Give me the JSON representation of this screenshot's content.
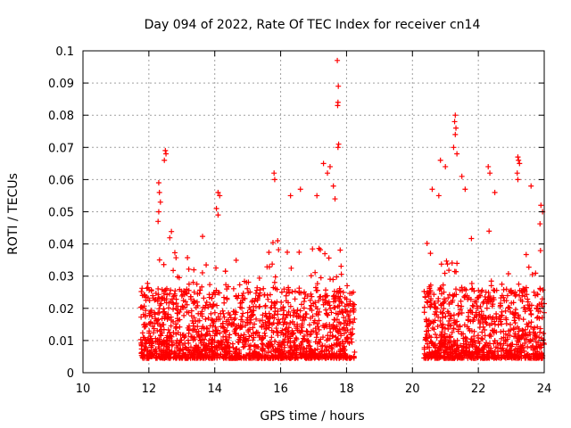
{
  "chart_data": {
    "type": "scatter",
    "title": "Day 094 of 2022, Rate Of TEC Index for receiver cn14",
    "xlabel": "GPS time / hours",
    "ylabel": "ROTI / TECUs",
    "xlim": [
      10,
      24
    ],
    "ylim": [
      0,
      0.1
    ],
    "x_ticks": [
      10,
      12,
      14,
      16,
      18,
      20,
      22,
      24
    ],
    "x_tick_labels": [
      "10",
      "12",
      "14",
      "16",
      "18",
      "20",
      "22",
      "24"
    ],
    "y_ticks": [
      0,
      0.01,
      0.02,
      0.03,
      0.04,
      0.05,
      0.06,
      0.07,
      0.08,
      0.09,
      0.1
    ],
    "y_tick_labels": [
      "0",
      "0.01",
      "0.02",
      "0.03",
      "0.04",
      "0.05",
      "0.06",
      "0.07",
      "0.08",
      "0.09",
      "0.1"
    ],
    "grid": true,
    "marker": "+",
    "color": "#ff0000",
    "data_gap": [
      18.25,
      20.35
    ],
    "series": [
      {
        "name": "cn14",
        "points": [
          [
            17.72,
            0.097
          ],
          [
            17.75,
            0.089
          ],
          [
            17.74,
            0.084
          ],
          [
            17.73,
            0.083
          ],
          [
            17.76,
            0.071
          ],
          [
            17.74,
            0.07
          ],
          [
            12.5,
            0.069
          ],
          [
            12.52,
            0.068
          ],
          [
            12.47,
            0.066
          ],
          [
            17.3,
            0.065
          ],
          [
            17.5,
            0.064
          ],
          [
            17.42,
            0.062
          ],
          [
            15.8,
            0.062
          ],
          [
            15.82,
            0.06
          ],
          [
            21.3,
            0.08
          ],
          [
            21.28,
            0.078
          ],
          [
            21.32,
            0.076
          ],
          [
            21.3,
            0.074
          ],
          [
            21.25,
            0.07
          ],
          [
            21.35,
            0.068
          ],
          [
            23.2,
            0.067
          ],
          [
            23.22,
            0.066
          ],
          [
            23.25,
            0.065
          ],
          [
            23.18,
            0.062
          ],
          [
            23.2,
            0.06
          ],
          [
            20.85,
            0.066
          ],
          [
            21.0,
            0.064
          ],
          [
            21.5,
            0.061
          ],
          [
            22.3,
            0.064
          ],
          [
            22.35,
            0.062
          ],
          [
            12.3,
            0.059
          ],
          [
            12.32,
            0.056
          ],
          [
            12.35,
            0.053
          ],
          [
            12.3,
            0.05
          ],
          [
            12.28,
            0.047
          ],
          [
            14.1,
            0.056
          ],
          [
            14.15,
            0.055
          ],
          [
            14.05,
            0.051
          ],
          [
            14.1,
            0.049
          ],
          [
            16.3,
            0.055
          ],
          [
            16.6,
            0.057
          ],
          [
            17.1,
            0.055
          ],
          [
            17.6,
            0.058
          ],
          [
            17.65,
            0.054
          ],
          [
            20.6,
            0.057
          ],
          [
            20.8,
            0.055
          ],
          [
            21.6,
            0.057
          ],
          [
            22.5,
            0.056
          ],
          [
            23.6,
            0.058
          ],
          [
            23.9,
            0.052
          ],
          [
            23.95,
            0.05
          ]
        ]
      }
    ]
  }
}
